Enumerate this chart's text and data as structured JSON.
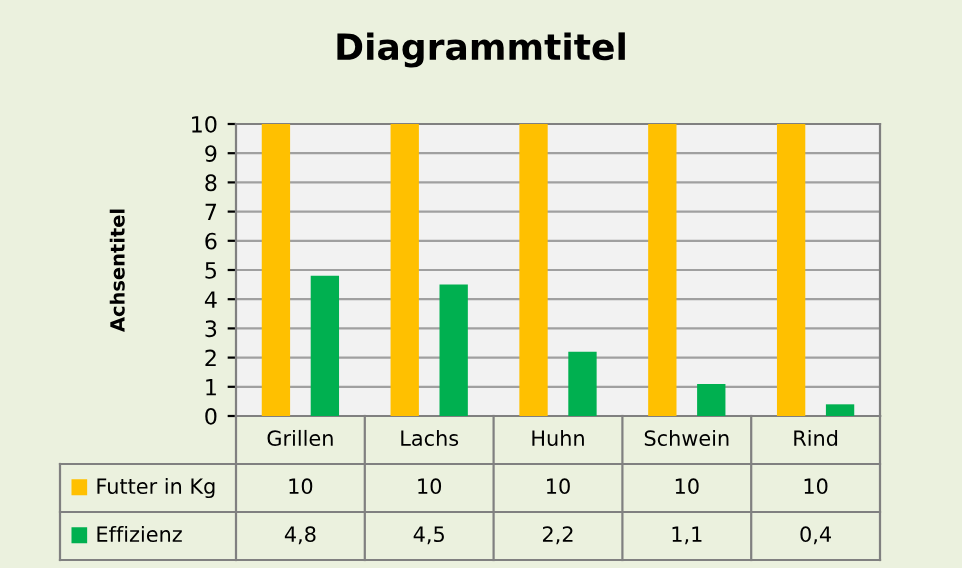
{
  "chart_data": {
    "type": "bar",
    "title": "Diagrammtitel",
    "ylabel": "Achsentitel",
    "categories": [
      "Grillen",
      "Lachs",
      "Huhn",
      "Schwein",
      "Rind"
    ],
    "series": [
      {
        "name": "Futter in Kg",
        "color": "#ffc000",
        "values": [
          10,
          10,
          10,
          10,
          10
        ],
        "value_labels": [
          "10",
          "10",
          "10",
          "10",
          "10"
        ]
      },
      {
        "name": "Effizienz",
        "color": "#00b050",
        "values": [
          4.8,
          4.5,
          2.2,
          1.1,
          0.4
        ],
        "value_labels": [
          "4,8",
          "4,5",
          "2,2",
          "1,1",
          "0,4"
        ]
      }
    ],
    "ylim": [
      0,
      10
    ],
    "yticks": [
      0,
      1,
      2,
      3,
      4,
      5,
      6,
      7,
      8,
      9,
      10
    ],
    "grid": "y",
    "legend": "bottom"
  }
}
